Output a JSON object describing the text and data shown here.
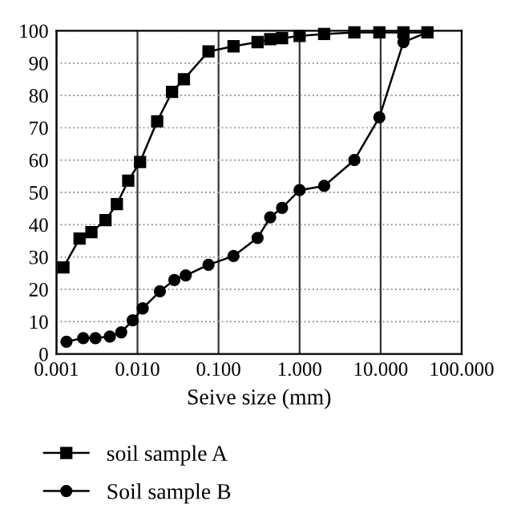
{
  "chart_data": {
    "type": "line",
    "xlabel": "Seive size (mm)",
    "log": "x",
    "xlim": [
      0.001,
      100
    ],
    "xticks": [
      {
        "value": 0.001,
        "label": "0.001"
      },
      {
        "value": 0.01,
        "label": "0.010"
      },
      {
        "value": 0.1,
        "label": "0.100"
      },
      {
        "value": 1,
        "label": "1.000"
      },
      {
        "value": 10,
        "label": "10.000"
      },
      {
        "value": 100,
        "label": "100.000"
      }
    ],
    "ylim": [
      0,
      100
    ],
    "yticks": [
      0,
      10,
      20,
      30,
      40,
      50,
      60,
      70,
      80,
      90,
      100
    ],
    "grid": true,
    "legend": "bottom",
    "line_style": "solid",
    "series": [
      {
        "name": "soil sample A",
        "color": "#000000",
        "marker": "square",
        "x": [
          0.00122,
          0.00193,
          0.0027,
          0.00403,
          0.00557,
          0.00769,
          0.01076,
          0.0175,
          0.0267,
          0.0374,
          0.0752,
          0.153,
          0.303,
          0.434,
          0.608,
          1.0,
          2.01,
          4.74,
          9.64,
          19.1,
          37.8
        ],
        "values": [
          26.8,
          35.7,
          37.7,
          41.4,
          46.4,
          53.6,
          59.4,
          72.0,
          81.1,
          85.0,
          93.6,
          95.2,
          96.5,
          97.4,
          97.7,
          98.4,
          99.0,
          99.5,
          99.5,
          99.5,
          99.5
        ]
      },
      {
        "name": "Soil sample B",
        "color": "#000000",
        "marker": "circle",
        "x": [
          0.00133,
          0.00214,
          0.00303,
          0.00456,
          0.0063,
          0.00873,
          0.0116,
          0.0189,
          0.0285,
          0.0394,
          0.0752,
          0.153,
          0.303,
          0.434,
          0.608,
          1.0,
          2.01,
          4.74,
          9.64,
          19.1,
          37.8
        ],
        "values": [
          3.8,
          4.9,
          4.9,
          5.4,
          6.7,
          10.4,
          14.1,
          19.4,
          22.9,
          24.3,
          27.6,
          30.3,
          35.9,
          42.3,
          45.2,
          50.7,
          52.0,
          60.0,
          73.2,
          96.5,
          99.5
        ]
      }
    ]
  }
}
